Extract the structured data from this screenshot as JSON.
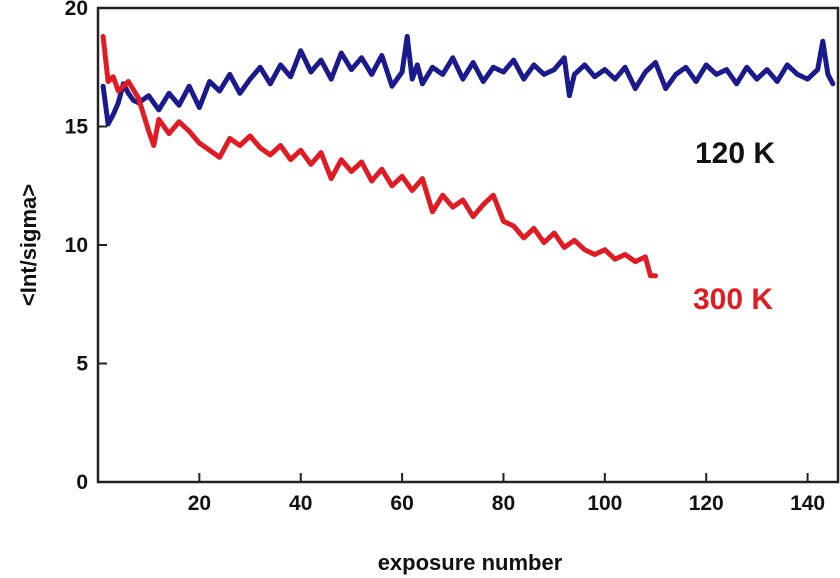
{
  "chart_data": {
    "type": "line",
    "title": "",
    "xlabel": "exposure number",
    "ylabel": "<Int/sigma>",
    "xlim": [
      0,
      146
    ],
    "ylim": [
      0,
      20
    ],
    "x_ticks": [
      20,
      40,
      60,
      80,
      100,
      120,
      140
    ],
    "y_ticks": [
      0,
      5,
      10,
      15,
      20
    ],
    "grid": false,
    "legend": "inline labels at right",
    "series": [
      {
        "name": "120 K",
        "color": "#1a1a8c",
        "x": [
          1,
          2,
          3,
          4,
          5,
          6,
          7,
          8,
          10,
          12,
          14,
          16,
          18,
          20,
          22,
          24,
          26,
          28,
          30,
          32,
          34,
          36,
          38,
          40,
          42,
          44,
          46,
          48,
          50,
          52,
          54,
          56,
          58,
          60,
          61,
          62,
          63,
          64,
          66,
          68,
          70,
          72,
          74,
          76,
          78,
          80,
          82,
          84,
          86,
          88,
          90,
          92,
          93,
          94,
          96,
          98,
          100,
          102,
          104,
          106,
          108,
          110,
          112,
          114,
          116,
          118,
          120,
          122,
          124,
          126,
          128,
          130,
          132,
          134,
          136,
          138,
          140,
          142,
          143,
          144,
          145
        ],
        "values": [
          16.7,
          15.1,
          15.5,
          16.0,
          16.8,
          16.4,
          16.1,
          16.0,
          16.3,
          15.7,
          16.4,
          15.9,
          16.7,
          15.8,
          16.9,
          16.5,
          17.2,
          16.4,
          17.0,
          17.5,
          16.8,
          17.6,
          17.1,
          18.2,
          17.3,
          17.8,
          17.0,
          18.1,
          17.4,
          17.9,
          17.2,
          18.0,
          16.7,
          17.3,
          18.8,
          17.0,
          17.6,
          16.8,
          17.5,
          17.2,
          17.9,
          17.0,
          17.7,
          16.9,
          17.5,
          17.3,
          17.8,
          17.0,
          17.6,
          17.2,
          17.4,
          17.9,
          16.3,
          17.2,
          17.6,
          17.1,
          17.4,
          17.0,
          17.5,
          16.6,
          17.3,
          17.7,
          16.6,
          17.2,
          17.5,
          16.9,
          17.6,
          17.2,
          17.4,
          16.8,
          17.5,
          17.0,
          17.4,
          16.9,
          17.6,
          17.2,
          17.0,
          17.4,
          18.6,
          17.2,
          16.8
        ]
      },
      {
        "name": "300 K",
        "color": "#e01b24",
        "x": [
          1,
          2,
          3,
          4,
          6,
          8,
          9,
          10,
          11,
          12,
          14,
          16,
          18,
          20,
          22,
          24,
          26,
          28,
          30,
          32,
          34,
          36,
          38,
          40,
          42,
          44,
          46,
          48,
          50,
          52,
          54,
          56,
          58,
          60,
          62,
          64,
          66,
          68,
          70,
          72,
          74,
          76,
          78,
          80,
          82,
          84,
          86,
          88,
          90,
          92,
          94,
          96,
          98,
          100,
          102,
          104,
          106,
          108,
          109,
          110
        ],
        "values": [
          18.8,
          16.9,
          17.1,
          16.5,
          16.9,
          16.2,
          15.5,
          14.8,
          14.2,
          15.3,
          14.7,
          15.2,
          14.8,
          14.3,
          14.0,
          13.7,
          14.5,
          14.2,
          14.6,
          14.1,
          13.8,
          14.2,
          13.6,
          14.0,
          13.4,
          13.9,
          12.8,
          13.6,
          13.1,
          13.5,
          12.7,
          13.2,
          12.5,
          12.9,
          12.3,
          12.8,
          11.4,
          12.1,
          11.6,
          11.9,
          11.2,
          11.7,
          12.1,
          11.0,
          10.8,
          10.3,
          10.7,
          10.1,
          10.5,
          9.9,
          10.2,
          9.8,
          9.6,
          9.8,
          9.4,
          9.6,
          9.3,
          9.5,
          8.7,
          8.7
        ]
      }
    ]
  }
}
